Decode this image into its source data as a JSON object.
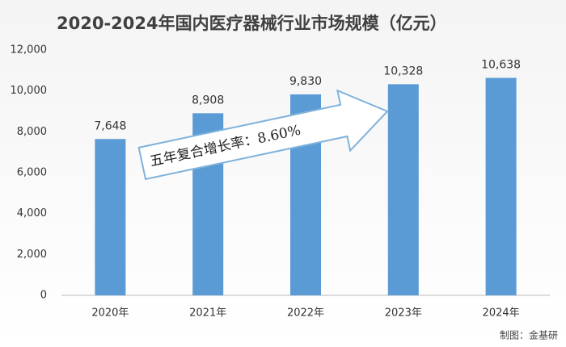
{
  "chart_data": {
    "type": "bar",
    "title": "2020-2024年国内医疗器械行业市场规模（亿元）",
    "categories": [
      "2020年",
      "2021年",
      "2022年",
      "2023年",
      "2024年"
    ],
    "values": [
      7648,
      8908,
      9830,
      10328,
      10638
    ],
    "value_labels": [
      "7,648",
      "8,908",
      "9,830",
      "10,328",
      "10,638"
    ],
    "color": "#5b9bd5",
    "ylim": [
      0,
      12000
    ],
    "yticks": [
      0,
      {
        "value": 2000,
        "label": "2,000"
      },
      {
        "value": 4000,
        "label": "4,000"
      },
      {
        "value": 6000,
        "label": "6,000"
      },
      {
        "value": 8000,
        "label": "8,000"
      },
      {
        "value": 10000,
        "label": "10,000"
      },
      {
        "value": 12000,
        "label": "12,000"
      }
    ],
    "grid": false,
    "annotation": "五年复合增长率：8.60%",
    "source": "制图：金基研"
  }
}
